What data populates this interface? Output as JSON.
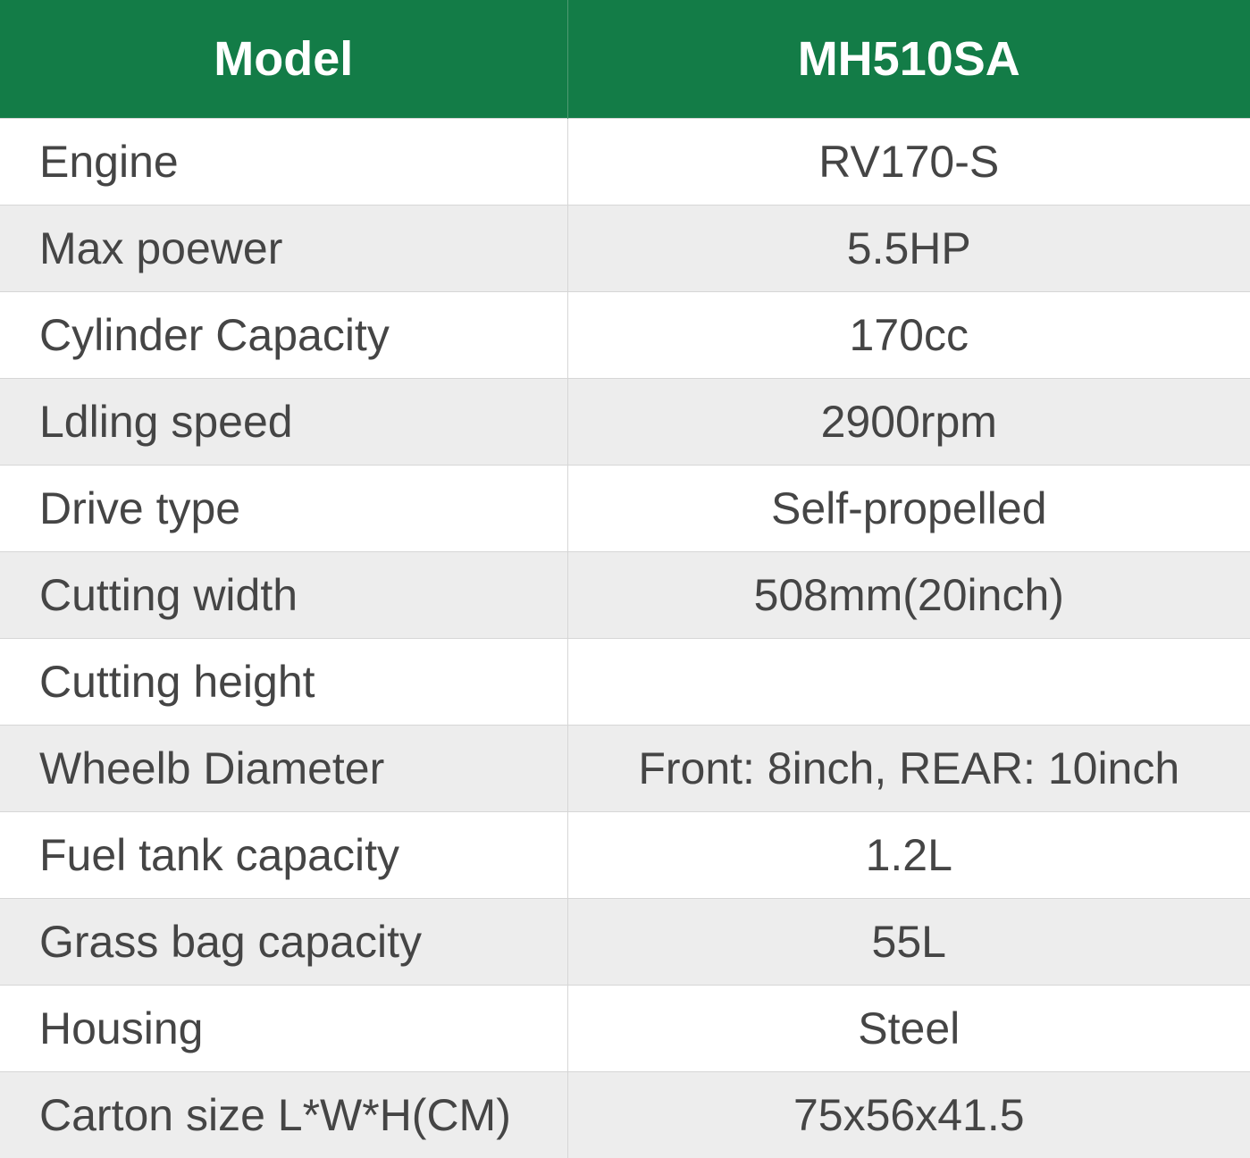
{
  "header": {
    "col1": "Model",
    "col2": "MH510SA"
  },
  "colors": {
    "header_bg": "#137c47",
    "alt_row_bg": "#ededed",
    "text": "#454545"
  },
  "rows": [
    {
      "label": "Engine",
      "value": "RV170-S"
    },
    {
      "label": "Max poewer",
      "value": "5.5HP"
    },
    {
      "label": "Cylinder Capacity",
      "value": "170cc"
    },
    {
      "label": "Ldling speed",
      "value": "2900rpm"
    },
    {
      "label": "Drive type",
      "value": "Self-propelled"
    },
    {
      "label": "Cutting width",
      "value": "508mm(20inch)"
    },
    {
      "label": "Cutting height",
      "value": ""
    },
    {
      "label": "Wheelb Diameter",
      "value": "Front: 8inch, REAR: 10inch"
    },
    {
      "label": "Fuel tank capacity",
      "value": "1.2L"
    },
    {
      "label": "Grass bag capacity",
      "value": "55L"
    },
    {
      "label": "Housing",
      "value": "Steel"
    },
    {
      "label": "Carton size L*W*H(CM)",
      "value": "75x56x41.5"
    }
  ]
}
